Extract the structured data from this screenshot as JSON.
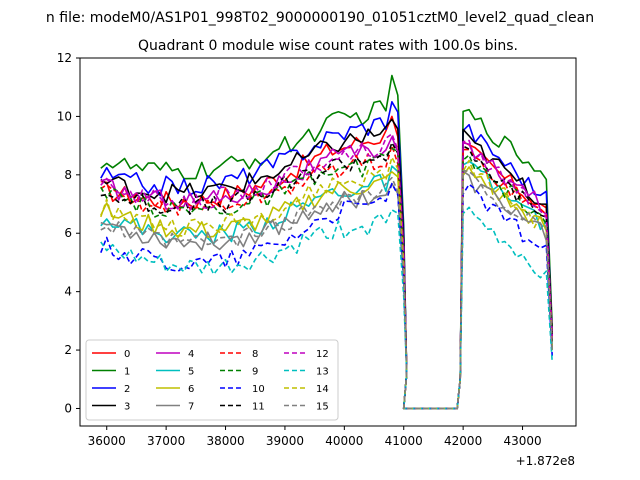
{
  "chart_data": {
    "type": "line",
    "suptitle": "n file: modeM0/AS1P01_998T02_9000000190_01051cztM0_level2_quad_clean",
    "title": "Quadrant 0 module wise count rates with 100.0s bins.",
    "xlabel": "",
    "ylabel": "",
    "x_offset_label": "+1.872e8",
    "xlim": [
      35550,
      43900
    ],
    "ylim": [
      -0.6,
      12
    ],
    "xticks": [
      36000,
      37000,
      38000,
      39000,
      40000,
      41000,
      42000,
      43000
    ],
    "xtick_labels": [
      "36000",
      "37000",
      "38000",
      "39000",
      "40000",
      "41000",
      "42000",
      "43000"
    ],
    "yticks": [
      0,
      2,
      4,
      6,
      8,
      10,
      12
    ],
    "ytick_labels": [
      "0",
      "2",
      "4",
      "6",
      "8",
      "10",
      "12"
    ],
    "legend_position": "lower-left",
    "legend_columns": 4,
    "time_bins": {
      "segment1": {
        "start": 35900,
        "end": 40900,
        "step": 100
      },
      "gap": [
        41000,
        41100,
        41200,
        41300,
        41400,
        41500,
        41600,
        41700,
        41800,
        41900
      ],
      "segment2": {
        "start": 42000,
        "end": 43500,
        "step": 100
      }
    },
    "series": [
      {
        "name": "0",
        "color": "#ff0000",
        "dash": "solid",
        "seg1_start": 7.5,
        "seg1_end": 9.5,
        "peak": 10.0,
        "seg2_start": 9.0,
        "seg2_end": 6.6,
        "last": 2.5
      },
      {
        "name": "1",
        "color": "#008000",
        "dash": "solid",
        "seg1_start": 8.5,
        "seg1_end": 10.4,
        "peak": 11.4,
        "seg2_start": 10.2,
        "seg2_end": 7.8,
        "last": 2.8
      },
      {
        "name": "2",
        "color": "#0000ff",
        "dash": "solid",
        "seg1_start": 8.0,
        "seg1_end": 10.0,
        "peak": 10.5,
        "seg2_start": 9.7,
        "seg2_end": 7.0,
        "last": 2.4
      },
      {
        "name": "3",
        "color": "#000000",
        "dash": "solid",
        "seg1_start": 7.8,
        "seg1_end": 9.6,
        "peak": 9.9,
        "seg2_start": 9.3,
        "seg2_end": 6.8,
        "last": 2.6
      },
      {
        "name": "4",
        "color": "#bf00bf",
        "dash": "solid",
        "seg1_start": 7.6,
        "seg1_end": 9.0,
        "peak": 9.3,
        "seg2_start": 9.0,
        "seg2_end": 6.7,
        "last": 2.4
      },
      {
        "name": "5",
        "color": "#00bfbf",
        "dash": "solid",
        "seg1_start": 6.6,
        "seg1_end": 7.8,
        "peak": 8.3,
        "seg2_start": 8.4,
        "seg2_end": 6.1,
        "last": 2.0
      },
      {
        "name": "6",
        "color": "#bfbf00",
        "dash": "solid",
        "seg1_start": 6.8,
        "seg1_end": 7.8,
        "peak": 8.1,
        "seg2_start": 8.2,
        "seg2_end": 6.0,
        "last": 2.0
      },
      {
        "name": "7",
        "color": "#808080",
        "dash": "solid",
        "seg1_start": 6.4,
        "seg1_end": 7.4,
        "peak": 7.7,
        "seg2_start": 7.9,
        "seg2_end": 5.9,
        "last": 2.1
      },
      {
        "name": "8",
        "color": "#ff0000",
        "dash": "dashed",
        "seg1_start": 7.4,
        "seg1_end": 8.6,
        "peak": 9.0,
        "seg2_start": 8.8,
        "seg2_end": 6.4,
        "last": 2.3
      },
      {
        "name": "9",
        "color": "#008000",
        "dash": "dashed",
        "seg1_start": 7.3,
        "seg1_end": 8.5,
        "peak": 8.9,
        "seg2_start": 8.6,
        "seg2_end": 6.3,
        "last": 2.3
      },
      {
        "name": "10",
        "color": "#0000ff",
        "dash": "dashed",
        "seg1_start": 5.6,
        "seg1_end": 7.2,
        "peak": 7.7,
        "seg2_start": 7.6,
        "seg2_end": 5.2,
        "last": 1.8
      },
      {
        "name": "11",
        "color": "#000000",
        "dash": "dashed",
        "seg1_start": 7.4,
        "seg1_end": 8.8,
        "peak": 9.1,
        "seg2_start": 8.8,
        "seg2_end": 6.4,
        "last": 2.3
      },
      {
        "name": "12",
        "color": "#bf00bf",
        "dash": "dashed",
        "seg1_start": 7.6,
        "seg1_end": 9.1,
        "peak": 9.4,
        "seg2_start": 9.1,
        "seg2_end": 6.6,
        "last": 2.4
      },
      {
        "name": "13",
        "color": "#00bfbf",
        "dash": "dashed",
        "seg1_start": 5.5,
        "seg1_end": 6.4,
        "peak": 6.8,
        "seg2_start": 6.8,
        "seg2_end": 4.4,
        "last": 1.6
      },
      {
        "name": "14",
        "color": "#bfbf00",
        "dash": "dashed",
        "seg1_start": 6.9,
        "seg1_end": 8.1,
        "peak": 8.6,
        "seg2_start": 8.4,
        "seg2_end": 6.0,
        "last": 2.1
      },
      {
        "name": "15",
        "color": "#808080",
        "dash": "dashed",
        "seg1_start": 6.3,
        "seg1_end": 7.5,
        "peak": 7.9,
        "seg2_start": 8.0,
        "seg2_end": 5.8,
        "last": 2.0
      }
    ]
  }
}
